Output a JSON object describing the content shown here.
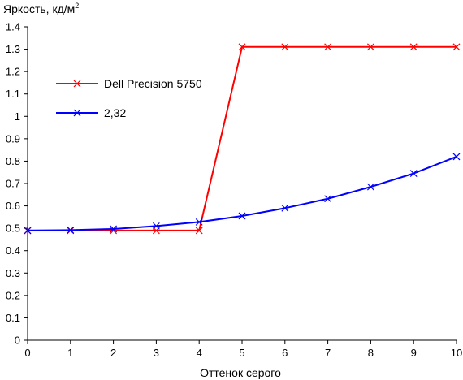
{
  "chart_data": {
    "type": "line",
    "ylabel": "Яркость, кд/м",
    "ylabel_sup": "2",
    "xlabel": "Оттенок серого",
    "xlim": [
      0,
      10
    ],
    "ylim": [
      0,
      1.4
    ],
    "x_ticks": [
      0,
      1,
      2,
      3,
      4,
      5,
      6,
      7,
      8,
      9,
      10
    ],
    "x_tick_labels": [
      "0",
      "1",
      "2",
      "3",
      "4",
      "5",
      "6",
      "7",
      "8",
      "9",
      "10"
    ],
    "y_ticks": [
      0,
      0.1,
      0.2,
      0.3,
      0.4,
      0.5,
      0.6,
      0.7,
      0.8,
      0.9,
      1,
      1.1,
      1.2,
      1.3,
      1.4
    ],
    "y_tick_labels": [
      "0",
      "0.1",
      "0.2",
      "0.3",
      "0.4",
      "0.5",
      "0.6",
      "0.7",
      "0.8",
      "0.9",
      "1",
      "1.1",
      "1.2",
      "1.3",
      "1.4"
    ],
    "grid": false,
    "legend_position": "left-upper",
    "x": [
      0,
      1,
      2,
      3,
      4,
      5,
      6,
      7,
      8,
      9,
      10
    ],
    "series": [
      {
        "name": "Dell Precision 5750",
        "color": "#ff0000",
        "marker": "x",
        "values": [
          0.49,
          0.49,
          0.49,
          0.49,
          0.49,
          1.31,
          1.31,
          1.31,
          1.31,
          1.31,
          1.31
        ]
      },
      {
        "name": "2,32",
        "color": "#0000ff",
        "marker": "x",
        "values": [
          0.49,
          0.492,
          0.497,
          0.51,
          0.528,
          0.555,
          0.59,
          0.632,
          0.685,
          0.745,
          0.82
        ]
      }
    ]
  }
}
